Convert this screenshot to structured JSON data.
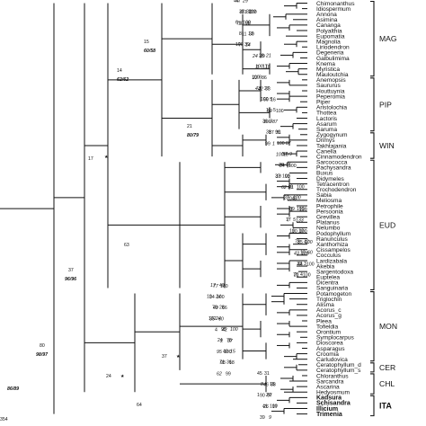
{
  "taxa": [
    "Chimonanthus",
    "Idiospermum",
    "Annona",
    "Asimina",
    "Cananga",
    "Polyalthia",
    "Eupomatia",
    "Magnolia",
    "Liriodendron",
    "Degeneria",
    "Galbulimima",
    "Knema",
    "Myristica",
    "Mauloutchia",
    "Anemopsis",
    "Saururus",
    "Houttuynia",
    "Peperomia",
    "Piper",
    "Aristolochia",
    "Thottea",
    "Lactoris",
    "Asarum",
    "Saruma",
    "Zygogynum",
    "Drimys",
    "Takhtajania",
    "Canella",
    "Cinnamodendron",
    "Sarcococca",
    "Pachysandra",
    "Buxus",
    "Didymeles",
    "Tetracentron",
    "Trochodendron",
    "Sabia",
    "Meliosma",
    "Petrophile",
    "Persoonia",
    "Grevillea",
    "Platanus",
    "Nelumbo",
    "Podophyllum",
    "Ranunculus",
    "Xanthorhiza",
    "Cissampelos",
    "Cocculus",
    "Lardizabala",
    "Akebia",
    "Sargentodoxa",
    "Euptelea",
    "Dicentra",
    "Sanguinaria",
    "Potamogeton",
    "Triglochin",
    "Alisma",
    "Acorus_c",
    "Acorus_g",
    "Pleea",
    "Tofieldia",
    "Orontium",
    "Symplocarpus",
    "Dioscorea",
    "Asparagus",
    "Croomia",
    "Carludovica",
    "Ceratophyllum_d",
    "Ceratophyllum_s",
    "Chloranthus",
    "Sarcandra",
    "Ascarina",
    "Hedyosmum",
    "Kadsura",
    "Schisandra",
    "Illicium",
    "Trimenia"
  ],
  "bold_taxa": [
    "Kadsura",
    "Schisandra",
    "Illicium",
    "Trimenia"
  ],
  "clades": [
    {
      "label": "MAG"
    },
    {
      "label": "PIP"
    },
    {
      "label": "WIN"
    },
    {
      "label": "EUD"
    },
    {
      "label": "MON"
    },
    {
      "label": "CER"
    },
    {
      "label": "CHL"
    },
    {
      "label": "ITA"
    }
  ],
  "node_labels": {
    "n15": "15",
    "n6058": "60/58",
    "n14": "14",
    "n6262": "62/62",
    "n21": "21",
    "n8079": "80/79",
    "n17": "17",
    "n63": "63",
    "n37": "37",
    "n9696": "96/96",
    "n80": "80",
    "n9897": "98/97",
    "n8689": "86/89",
    "n354": "354",
    "n24": "24",
    "n37b": "37",
    "n64": "64"
  },
  "sup_labels": [
    "44",
    "8",
    "82",
    "71",
    "100",
    "30",
    "8",
    "14",
    "100",
    "29",
    "21",
    "8",
    "17",
    "22",
    "8",
    "33",
    "43",
    "16",
    "100",
    "59",
    "5",
    "100",
    "3",
    "31",
    "38",
    "1",
    "100",
    "18",
    "9",
    "24",
    "16",
    "18",
    "100",
    "41",
    "19",
    "8",
    "37",
    "1",
    "199",
    "7",
    "5",
    "100",
    "12",
    "100",
    "73",
    "109",
    "60",
    "44",
    "3",
    "21",
    "4",
    "100",
    "17",
    "100",
    "10",
    "49",
    "28",
    "35",
    "24",
    "42",
    "95",
    "37",
    "24",
    "100",
    "15",
    "98",
    "36",
    "62",
    "31",
    "88",
    "8",
    "97",
    "1",
    "26",
    "100",
    "39",
    "29",
    "100",
    "37",
    "98",
    "6",
    "11",
    "13",
    "7",
    "39",
    "24",
    "28",
    "18",
    "100",
    "86",
    "100",
    "42",
    "27",
    "59",
    "5",
    "100",
    "11",
    "87",
    "36",
    "37",
    "96",
    "99",
    "87",
    "100",
    "57",
    "100",
    "28",
    "93",
    "37",
    "62",
    "100",
    "204",
    "100",
    "139",
    "89",
    "133",
    "17",
    "90",
    "10",
    "85",
    "42",
    "43",
    "10",
    "100",
    "33",
    "100",
    "76",
    "77",
    "40",
    "34",
    "24",
    "66",
    "70",
    "60",
    "102",
    "4",
    "100",
    "2",
    "78",
    "95",
    "40",
    "18",
    "71",
    "99",
    "45",
    "46",
    "15",
    "90",
    "29",
    "17",
    "41",
    "9",
    "47",
    "31",
    "100",
    "10"
  ]
}
